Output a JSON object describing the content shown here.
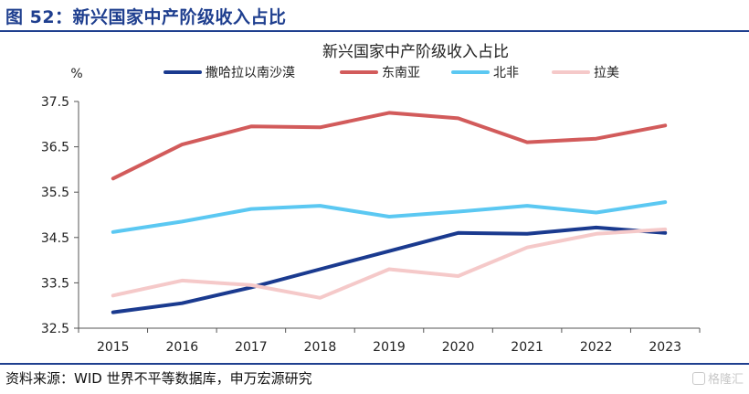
{
  "figure": {
    "title": "图 52：新兴国家中产阶级收入占比",
    "source": "资料来源：WID 世界不平等数据库，申万宏源研究",
    "watermark": "格隆汇"
  },
  "chart_data": {
    "type": "line",
    "title": "新兴国家中产阶级收入占比",
    "ylabel": "%",
    "xlabel": "",
    "x": [
      "2015",
      "2016",
      "2017",
      "2018",
      "2019",
      "2020",
      "2021",
      "2022",
      "2023"
    ],
    "ylim": [
      32.5,
      37.5
    ],
    "yticks": [
      "32.5",
      "33.5",
      "34.5",
      "35.5",
      "36.5",
      "37.5"
    ],
    "legend_position": "top",
    "grid": false,
    "series": [
      {
        "name": "撒哈拉以南沙漠",
        "color": "#1a3a8f",
        "values": [
          32.85,
          33.05,
          33.4,
          33.8,
          34.2,
          34.6,
          34.58,
          34.72,
          34.6
        ]
      },
      {
        "name": "东南亚",
        "color": "#d25b5b",
        "values": [
          35.8,
          36.55,
          36.95,
          36.93,
          37.25,
          37.13,
          36.6,
          36.68,
          36.97
        ]
      },
      {
        "name": "北非",
        "color": "#5bc8f2",
        "values": [
          34.62,
          34.85,
          35.13,
          35.2,
          34.96,
          35.07,
          35.2,
          35.05,
          35.28
        ]
      },
      {
        "name": "拉美",
        "color": "#f5c9c9",
        "values": [
          33.22,
          33.55,
          33.45,
          33.17,
          33.8,
          33.65,
          34.28,
          34.58,
          34.68
        ]
      }
    ]
  }
}
